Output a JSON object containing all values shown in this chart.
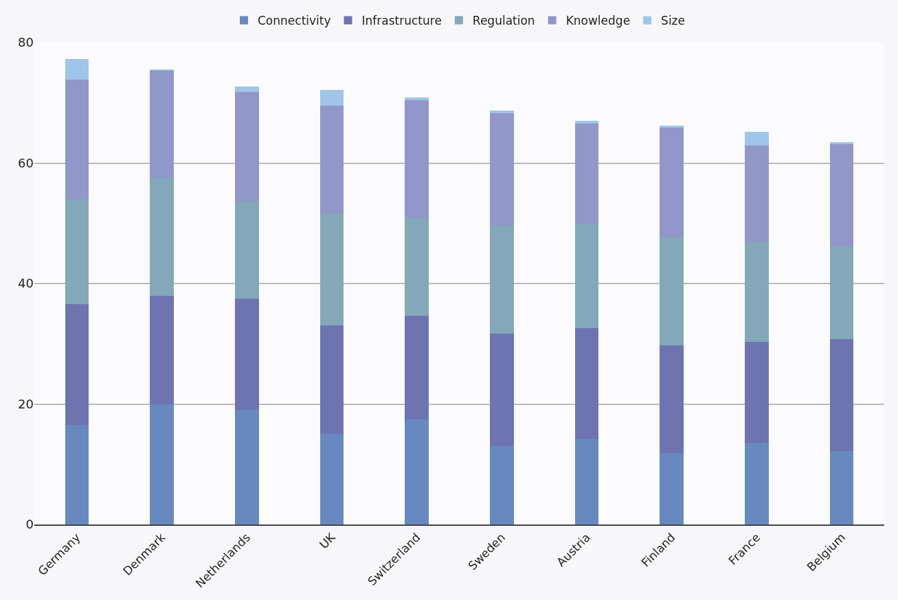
{
  "chart_data": {
    "type": "bar",
    "stacked": true,
    "categories": [
      "Germany",
      "Denmark",
      "Netherlands",
      "UK",
      "Switzerland",
      "Sweden",
      "Austria",
      "Finland",
      "France",
      "Belgium"
    ],
    "series": [
      {
        "name": "Connectivity",
        "color": "#6789bf",
        "values": [
          16.5,
          20.0,
          19.0,
          15.0,
          17.4,
          13.0,
          14.2,
          11.9,
          13.6,
          12.2
        ]
      },
      {
        "name": "Infrastructure",
        "color": "#6d74b0",
        "values": [
          20.1,
          18.0,
          18.5,
          18.0,
          17.2,
          18.7,
          18.4,
          17.9,
          16.7,
          18.6
        ]
      },
      {
        "name": "Regulation",
        "color": "#82a8b9",
        "values": [
          17.4,
          19.5,
          16.1,
          18.5,
          16.2,
          17.9,
          17.3,
          17.8,
          16.5,
          15.4
        ]
      },
      {
        "name": "Knowledge",
        "color": "#9197c8",
        "values": [
          19.9,
          17.9,
          18.2,
          18.0,
          19.6,
          18.7,
          16.7,
          18.3,
          16.1,
          16.9
        ]
      },
      {
        "name": "Size",
        "color": "#9fc5e8",
        "values": [
          3.4,
          0.2,
          0.9,
          2.6,
          0.5,
          0.4,
          0.4,
          0.3,
          2.3,
          0.4
        ]
      }
    ],
    "ylim": [
      0,
      80
    ],
    "yticks": [
      0,
      20,
      40,
      60,
      80
    ],
    "grid": "y",
    "legend": "top"
  }
}
